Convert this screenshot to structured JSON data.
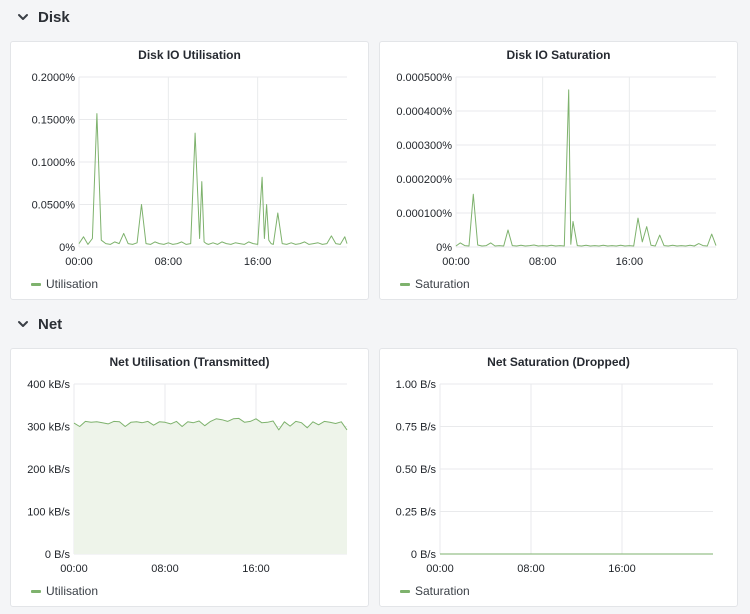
{
  "rows": [
    {
      "title": "Disk",
      "icon": "chevron-down-icon"
    },
    {
      "title": "Net",
      "icon": "chevron-down-icon"
    }
  ],
  "series_color": "#7eb26d",
  "fill_color": "#eef4ea",
  "panels": [
    {
      "title": "Disk IO Utilisation",
      "legend": "Utilisation",
      "chart_data": {
        "type": "line",
        "title": "Disk IO Utilisation",
        "y_ticks": [
          "0.2000%",
          "0.1500%",
          "0.1000%",
          "0.0500%",
          "0%"
        ],
        "ylim": [
          0,
          0.2
        ],
        "y_unit": "%",
        "x_ticks": [
          "00:00",
          "08:00",
          "16:00"
        ],
        "x_tick_hours": [
          0,
          8,
          16
        ],
        "xlim_hours": [
          0,
          24
        ],
        "grid": true,
        "legend_position": "bottom-left",
        "series": [
          {
            "name": "Utilisation",
            "x_hours": [
              0,
              0.4,
              0.8,
              1.2,
              1.6,
              2.0,
              2.4,
              2.8,
              3.2,
              3.6,
              4.0,
              4.4,
              4.8,
              5.2,
              5.6,
              6.0,
              6.4,
              6.8,
              7.2,
              7.6,
              8.0,
              8.4,
              8.8,
              9.2,
              9.6,
              10.0,
              10.4,
              10.8,
              11.0,
              11.2,
              11.4,
              11.6,
              12.0,
              12.4,
              12.8,
              13.2,
              13.6,
              14.0,
              14.4,
              14.8,
              15.2,
              15.6,
              16.0,
              16.4,
              16.6,
              16.8,
              17.0,
              17.2,
              17.4,
              17.8,
              18.2,
              18.6,
              19.0,
              19.4,
              19.8,
              20.2,
              20.6,
              21.0,
              21.4,
              21.8,
              22.2,
              22.6,
              23.0,
              23.4,
              23.8,
              24.0
            ],
            "values": [
              0.004,
              0.012,
              0.003,
              0.01,
              0.157,
              0.008,
              0.004,
              0.003,
              0.006,
              0.004,
              0.016,
              0.004,
              0.003,
              0.005,
              0.05,
              0.004,
              0.003,
              0.006,
              0.004,
              0.003,
              0.005,
              0.003,
              0.004,
              0.006,
              0.003,
              0.004,
              0.134,
              0.01,
              0.077,
              0.006,
              0.004,
              0.003,
              0.005,
              0.003,
              0.006,
              0.004,
              0.003,
              0.005,
              0.004,
              0.003,
              0.006,
              0.004,
              0.003,
              0.082,
              0.01,
              0.05,
              0.008,
              0.004,
              0.003,
              0.04,
              0.004,
              0.003,
              0.005,
              0.003,
              0.004,
              0.006,
              0.003,
              0.004,
              0.005,
              0.003,
              0.004,
              0.013,
              0.004,
              0.003,
              0.012,
              0.004
            ]
          }
        ]
      }
    },
    {
      "title": "Disk IO Saturation",
      "legend": "Saturation",
      "chart_data": {
        "type": "line",
        "title": "Disk IO Saturation",
        "y_ticks": [
          "0.000500%",
          "0.000400%",
          "0.000300%",
          "0.000200%",
          "0.000100%",
          "0%"
        ],
        "ylim": [
          0,
          0.0005
        ],
        "y_unit": "%",
        "x_ticks": [
          "00:00",
          "08:00",
          "16:00"
        ],
        "x_tick_hours": [
          0,
          8,
          16
        ],
        "xlim_hours": [
          0,
          24
        ],
        "grid": true,
        "legend_position": "bottom-left",
        "series": [
          {
            "name": "Saturation",
            "x_hours": [
              0,
              0.4,
              0.8,
              1.2,
              1.6,
              2.0,
              2.4,
              2.8,
              3.2,
              3.6,
              4.0,
              4.4,
              4.8,
              5.2,
              5.6,
              6.0,
              6.4,
              6.8,
              7.2,
              7.6,
              8.0,
              8.4,
              8.8,
              9.2,
              9.6,
              10.0,
              10.4,
              10.6,
              10.8,
              11.2,
              11.6,
              12.0,
              12.4,
              12.8,
              13.2,
              13.6,
              14.0,
              14.4,
              14.8,
              15.2,
              15.6,
              16.0,
              16.4,
              16.8,
              17.2,
              17.6,
              18.0,
              18.4,
              18.8,
              19.2,
              19.6,
              20.0,
              20.4,
              20.8,
              21.2,
              21.6,
              22.0,
              22.4,
              22.8,
              23.2,
              23.6,
              24.0
            ],
            "values": [
              3e-06,
              1.2e-05,
              4e-06,
              3e-06,
              0.000155,
              6e-06,
              3e-06,
              4e-06,
              1.2e-05,
              3e-06,
              4e-06,
              3e-06,
              5e-05,
              4e-06,
              3e-06,
              5e-06,
              3e-06,
              4e-06,
              6e-06,
              3e-06,
              4e-06,
              3e-06,
              5e-06,
              3e-06,
              4e-06,
              3e-06,
              0.000462,
              8e-06,
              7.5e-05,
              4e-06,
              3e-06,
              5e-06,
              3e-06,
              4e-06,
              3e-06,
              5e-06,
              3e-06,
              4e-06,
              3e-06,
              5e-06,
              3e-06,
              4e-06,
              3e-06,
              8.5e-05,
              1.5e-05,
              6e-05,
              5e-06,
              3e-06,
              3.5e-05,
              4e-06,
              3e-06,
              5e-06,
              3e-06,
              4e-06,
              3e-06,
              5e-06,
              3e-06,
              1e-05,
              4e-06,
              3e-06,
              3.8e-05,
              4e-06
            ]
          }
        ]
      }
    },
    {
      "title": "Net Utilisation (Transmitted)",
      "legend": "Utilisation",
      "chart_data": {
        "type": "area",
        "title": "Net Utilisation (Transmitted)",
        "y_ticks": [
          "400 kB/s",
          "300 kB/s",
          "200 kB/s",
          "100 kB/s",
          "0 B/s"
        ],
        "ylim": [
          0,
          400
        ],
        "y_unit": "kB/s",
        "x_ticks": [
          "00:00",
          "08:00",
          "16:00"
        ],
        "x_tick_hours": [
          0,
          8,
          16
        ],
        "xlim_hours": [
          0,
          24
        ],
        "grid": true,
        "legend_position": "bottom-left",
        "series": [
          {
            "name": "Utilisation",
            "x_hours": [
              0,
              0.5,
              1.0,
              1.5,
              2.0,
              2.5,
              3.0,
              3.5,
              4.0,
              4.5,
              5.0,
              5.5,
              6.0,
              6.5,
              7.0,
              7.5,
              8.0,
              8.5,
              9.0,
              9.5,
              10.0,
              10.5,
              11.0,
              11.5,
              12.0,
              12.5,
              13.0,
              13.5,
              14.0,
              14.5,
              15.0,
              15.5,
              16.0,
              16.5,
              17.0,
              17.5,
              18.0,
              18.5,
              19.0,
              19.5,
              20.0,
              20.5,
              21.0,
              21.5,
              22.0,
              22.5,
              23.0,
              23.5,
              24.0
            ],
            "values": [
              308,
              300,
              312,
              310,
              311,
              309,
              306,
              312,
              311,
              300,
              310,
              311,
              309,
              312,
              303,
              311,
              310,
              306,
              312,
              300,
              311,
              309,
              313,
              302,
              312,
              318,
              316,
              312,
              318,
              319,
              310,
              312,
              318,
              309,
              310,
              313,
              292,
              311,
              301,
              312,
              309,
              297,
              311,
              304,
              312,
              310,
              307,
              311,
              292
            ]
          }
        ]
      }
    },
    {
      "title": "Net Saturation (Dropped)",
      "legend": "Saturation",
      "chart_data": {
        "type": "line",
        "title": "Net Saturation (Dropped)",
        "y_ticks": [
          "1.00 B/s",
          "0.75 B/s",
          "0.50 B/s",
          "0.25 B/s",
          "0 B/s"
        ],
        "ylim": [
          0,
          1
        ],
        "y_unit": "B/s",
        "x_ticks": [
          "00:00",
          "08:00",
          "16:00"
        ],
        "x_tick_hours": [
          0,
          8,
          16
        ],
        "xlim_hours": [
          0,
          24
        ],
        "grid": true,
        "legend_position": "bottom-left",
        "series": [
          {
            "name": "Saturation",
            "x_hours": [
              0,
              24
            ],
            "values": [
              0,
              0
            ]
          }
        ]
      }
    }
  ]
}
